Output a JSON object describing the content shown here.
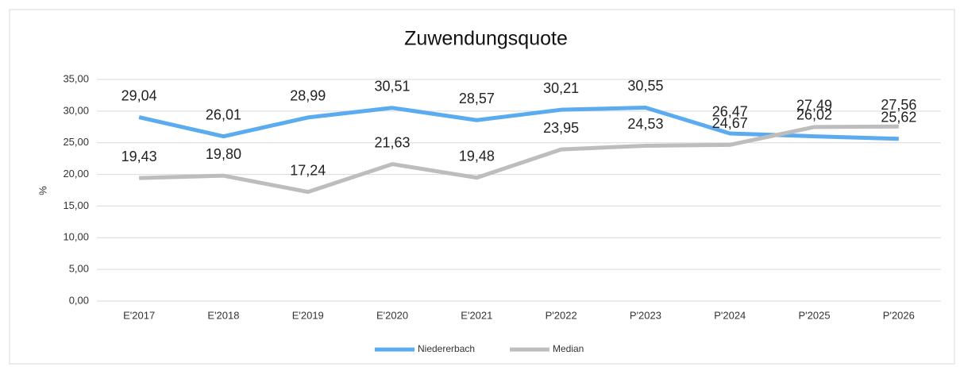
{
  "chart_data": {
    "type": "line",
    "title": "Zuwendungsquote",
    "y_label": "%",
    "categories": [
      "E'2017",
      "E'2018",
      "E'2019",
      "E'2020",
      "E'2021",
      "P'2022",
      "P'2023",
      "P'2024",
      "P'2025",
      "P'2026"
    ],
    "series": [
      {
        "name": "Niedererbach",
        "color": "#5aabef",
        "values": [
          29.04,
          26.01,
          28.99,
          30.51,
          28.57,
          30.21,
          30.55,
          26.47,
          26.02,
          25.62
        ],
        "value_labels": [
          "29,04",
          "26,01",
          "28,99",
          "30,51",
          "28,57",
          "30,21",
          "30,55",
          "26,47",
          "26,02",
          "25,62"
        ]
      },
      {
        "name": "Median",
        "color": "#bdbdbd",
        "values": [
          19.43,
          19.8,
          17.24,
          21.63,
          19.48,
          23.95,
          24.53,
          24.67,
          27.49,
          27.56
        ],
        "value_labels": [
          "19,43",
          "19,80",
          "17,24",
          "21,63",
          "19,48",
          "23,95",
          "24,53",
          "24,67",
          "27,49",
          "27,56"
        ]
      }
    ],
    "ylim": [
      0,
      35
    ],
    "yticks": [
      {
        "value": 0,
        "label": "0,00"
      },
      {
        "value": 5,
        "label": "5,00"
      },
      {
        "value": 10,
        "label": "10,00"
      },
      {
        "value": 15,
        "label": "15,00"
      },
      {
        "value": 20,
        "label": "20,00"
      },
      {
        "value": 25,
        "label": "25,00"
      },
      {
        "value": 30,
        "label": "30,00"
      },
      {
        "value": 35,
        "label": "35,00"
      }
    ],
    "grid": true,
    "legend": "bottom"
  }
}
